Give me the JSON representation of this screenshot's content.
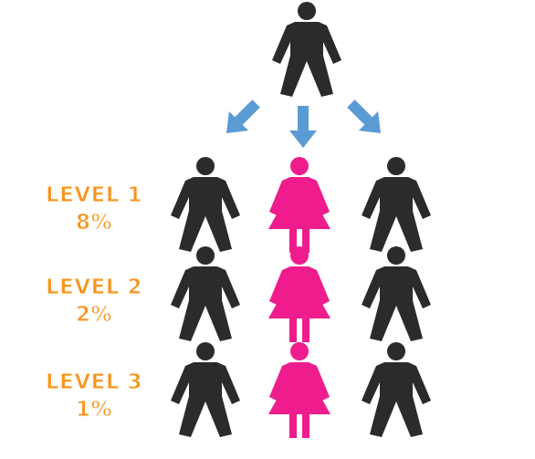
{
  "colors": {
    "male": "#2b2b2b",
    "female": "#ee1c8d",
    "arrow": "#5b9bd5",
    "label": "#f7941d"
  },
  "levels": [
    {
      "name": "LEVEL 1",
      "percent": "8%"
    },
    {
      "name": "LEVEL 2",
      "percent": "2%"
    },
    {
      "name": "LEVEL 3",
      "percent": "1%"
    }
  ]
}
